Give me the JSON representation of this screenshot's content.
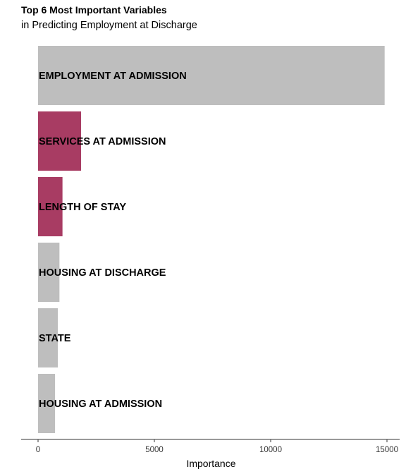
{
  "chart_data": {
    "type": "bar",
    "orientation": "horizontal",
    "title": "Top 6 Most Important Variables",
    "subtitle": "in Predicting Employment at Discharge",
    "xlabel": "Importance",
    "ylabel": "",
    "xlim": [
      0,
      15400
    ],
    "xticks": [
      0,
      5000,
      10000,
      15000
    ],
    "grid": false,
    "legend": "none",
    "categories": [
      "EMPLOYMENT AT ADMISSION",
      "SERVICES AT ADMISSION",
      "LENGTH OF STAY",
      "HOUSING AT DISCHARGE",
      "STATE",
      "HOUSING AT ADMISSION"
    ],
    "values": [
      14900,
      1850,
      1050,
      920,
      850,
      730
    ],
    "highlighted": [
      false,
      true,
      true,
      false,
      false,
      false
    ],
    "colors": {
      "default": "#bebebe",
      "highlight": "#a83c63"
    }
  }
}
